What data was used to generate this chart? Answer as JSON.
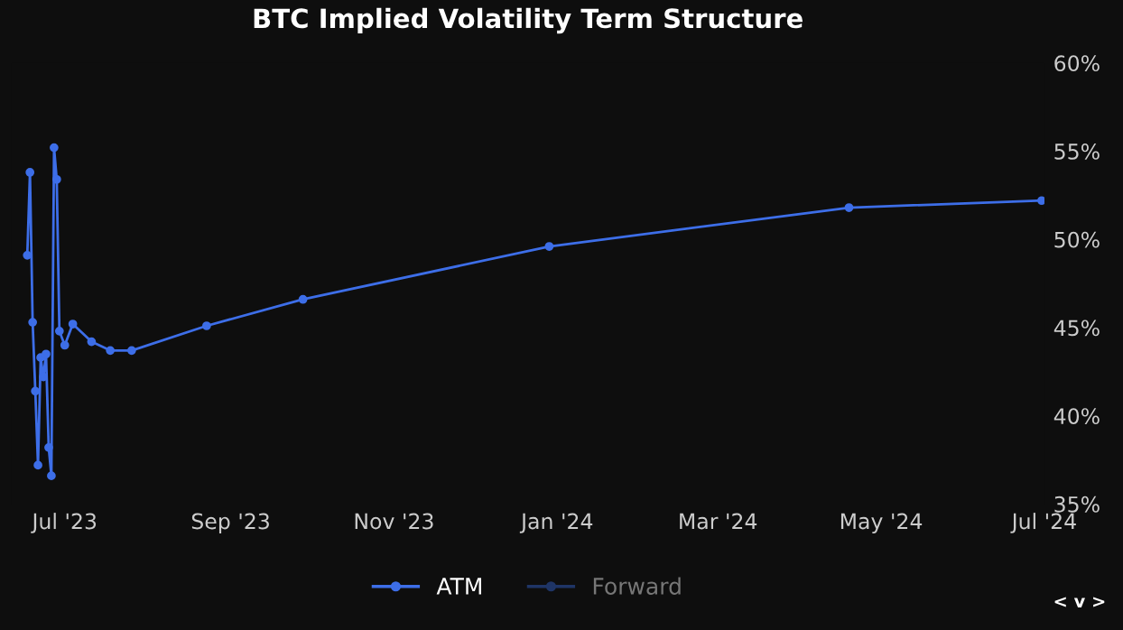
{
  "chart_data": {
    "type": "line",
    "title": "BTC Implied Volatility Term Structure",
    "x": [
      "2023-06-17",
      "2023-06-18",
      "2023-06-19",
      "2023-06-20",
      "2023-06-21",
      "2023-06-22",
      "2023-06-23",
      "2023-06-24",
      "2023-06-25",
      "2023-06-26",
      "2023-06-27",
      "2023-06-28",
      "2023-06-29",
      "2023-07-01",
      "2023-07-04",
      "2023-07-11",
      "2023-07-18",
      "2023-07-26",
      "2023-08-23",
      "2023-09-28",
      "2023-12-29",
      "2024-04-19",
      "2024-06-30"
    ],
    "series": [
      {
        "name": "ATM",
        "color": "#3d6ee8",
        "values": [
          49.1,
          53.8,
          45.3,
          41.4,
          37.2,
          43.3,
          42.2,
          43.5,
          38.2,
          36.6,
          55.2,
          53.4,
          44.8,
          44.0,
          45.2,
          44.2,
          43.7,
          43.7,
          45.1,
          46.6,
          49.6,
          51.8,
          52.2
        ]
      },
      {
        "name": "Forward",
        "color": "#1f3566",
        "values": [
          null,
          null,
          null,
          null,
          null,
          null,
          null,
          null,
          null,
          null,
          null,
          null,
          null,
          null,
          null,
          null,
          null,
          null,
          null,
          null,
          null,
          null,
          null
        ]
      }
    ],
    "xlim": [
      "2023-06-11",
      "2024-07-01"
    ],
    "xticks": [
      {
        "value": "2023-07-01",
        "label": "Jul '23"
      },
      {
        "value": "2023-09-01",
        "label": "Sep '23"
      },
      {
        "value": "2023-11-01",
        "label": "Nov '23"
      },
      {
        "value": "2024-01-01",
        "label": "Jan '24"
      },
      {
        "value": "2024-03-01",
        "label": "Mar '24"
      },
      {
        "value": "2024-05-01",
        "label": "May '24"
      },
      {
        "value": "2024-07-01",
        "label": "Jul '24"
      }
    ],
    "ylim": [
      35,
      60
    ],
    "yticks": [
      {
        "value": 35,
        "label": "35%"
      },
      {
        "value": 40,
        "label": "40%"
      },
      {
        "value": 45,
        "label": "45%"
      },
      {
        "value": 50,
        "label": "50%"
      },
      {
        "value": 55,
        "label": "55%"
      },
      {
        "value": 60,
        "label": "60%"
      }
    ],
    "grid": false,
    "legend": "bottom",
    "marker": "circle",
    "line_style": "solid",
    "annotations": [
      "< v >"
    ]
  }
}
